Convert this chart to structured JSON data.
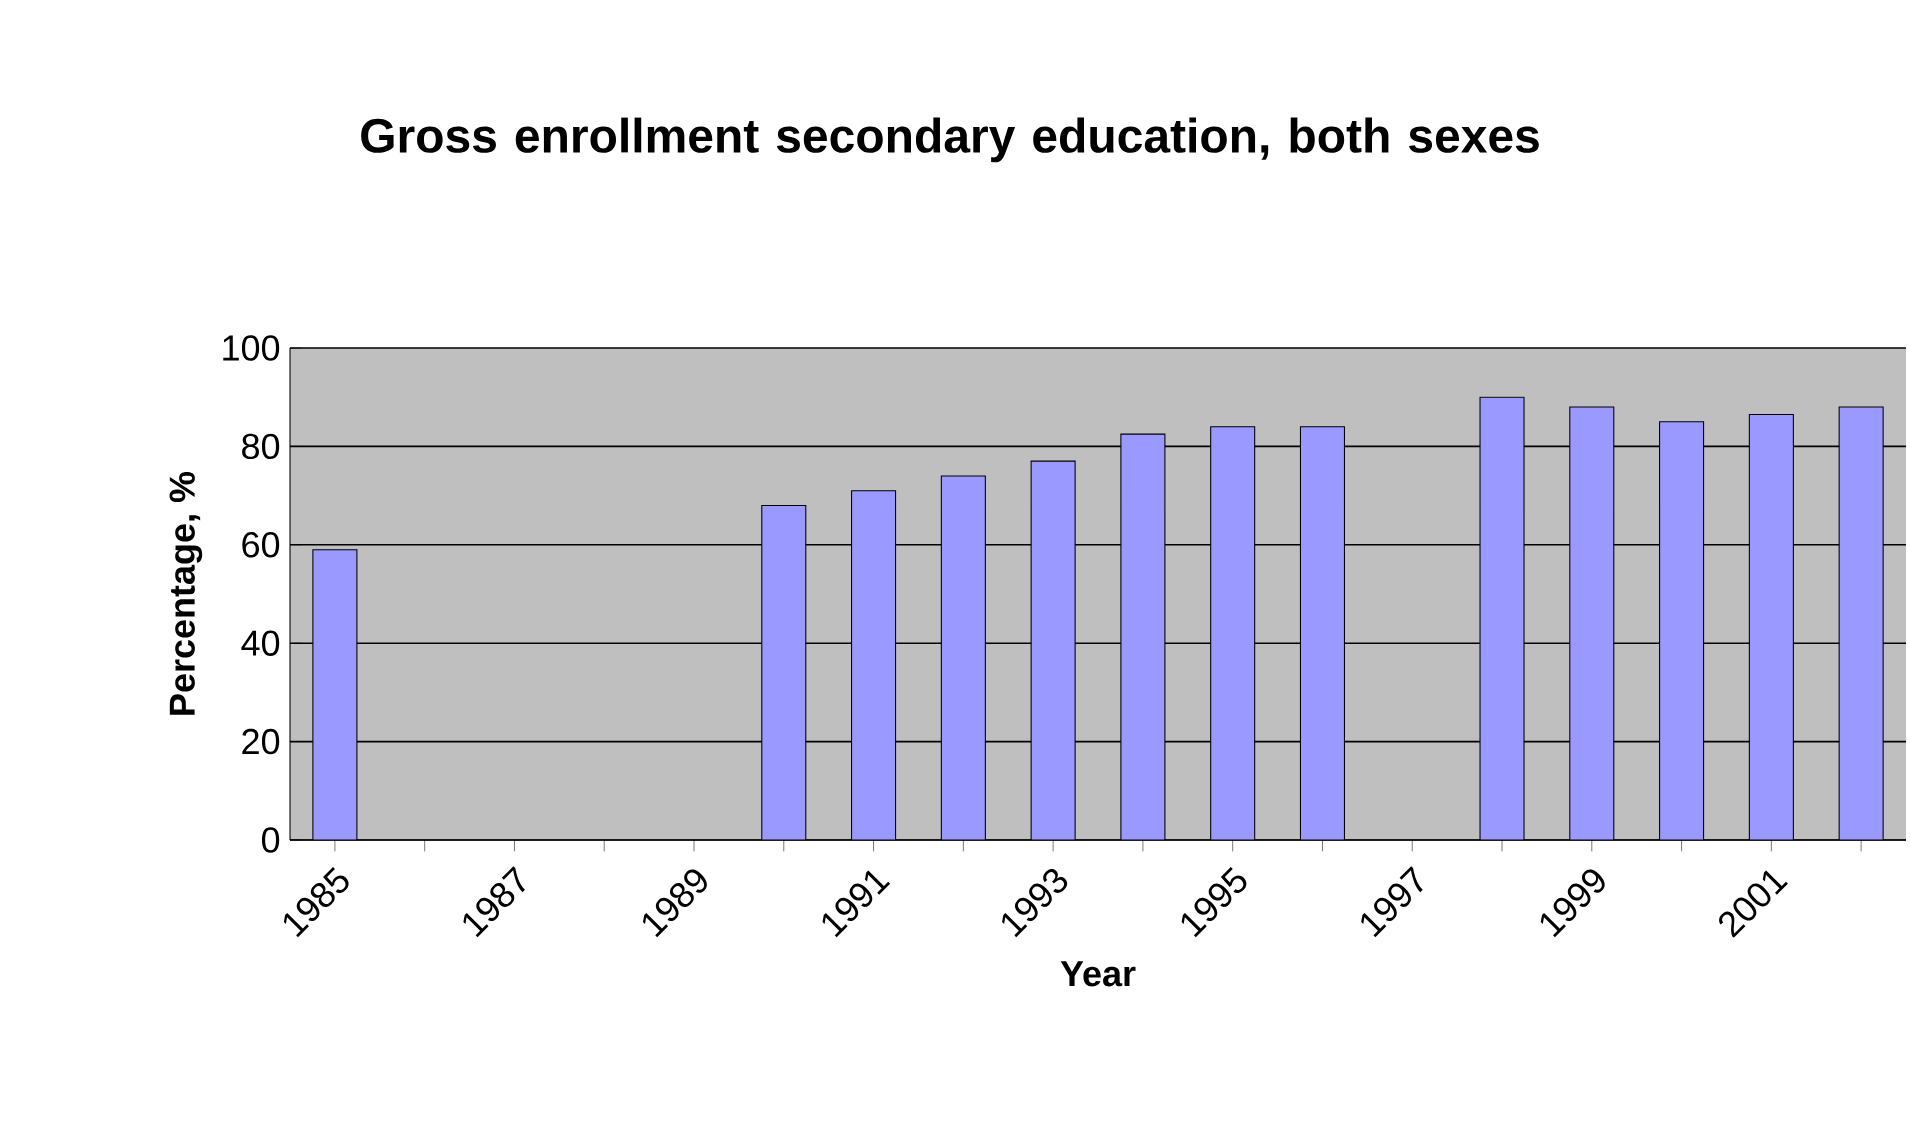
{
  "chart_data": {
    "type": "bar",
    "title": "Gross enrollment secondary education, both sexes",
    "xlabel": "Year",
    "ylabel": "Percentage, %",
    "categories": [
      "1985",
      null,
      "1987",
      null,
      "1989",
      null,
      "1991",
      null,
      "1993",
      null,
      "1995",
      null,
      "1997",
      null,
      "1999",
      null,
      "2001",
      null
    ],
    "values": [
      59,
      null,
      null,
      null,
      null,
      68,
      71,
      74,
      77,
      82.5,
      84,
      84,
      null,
      90,
      88,
      85,
      86.5,
      88
    ],
    "color": "#9999ff",
    "ylim": [
      0,
      100
    ],
    "yticks": [
      0,
      20,
      40,
      60,
      80,
      100
    ],
    "grid": "y"
  }
}
